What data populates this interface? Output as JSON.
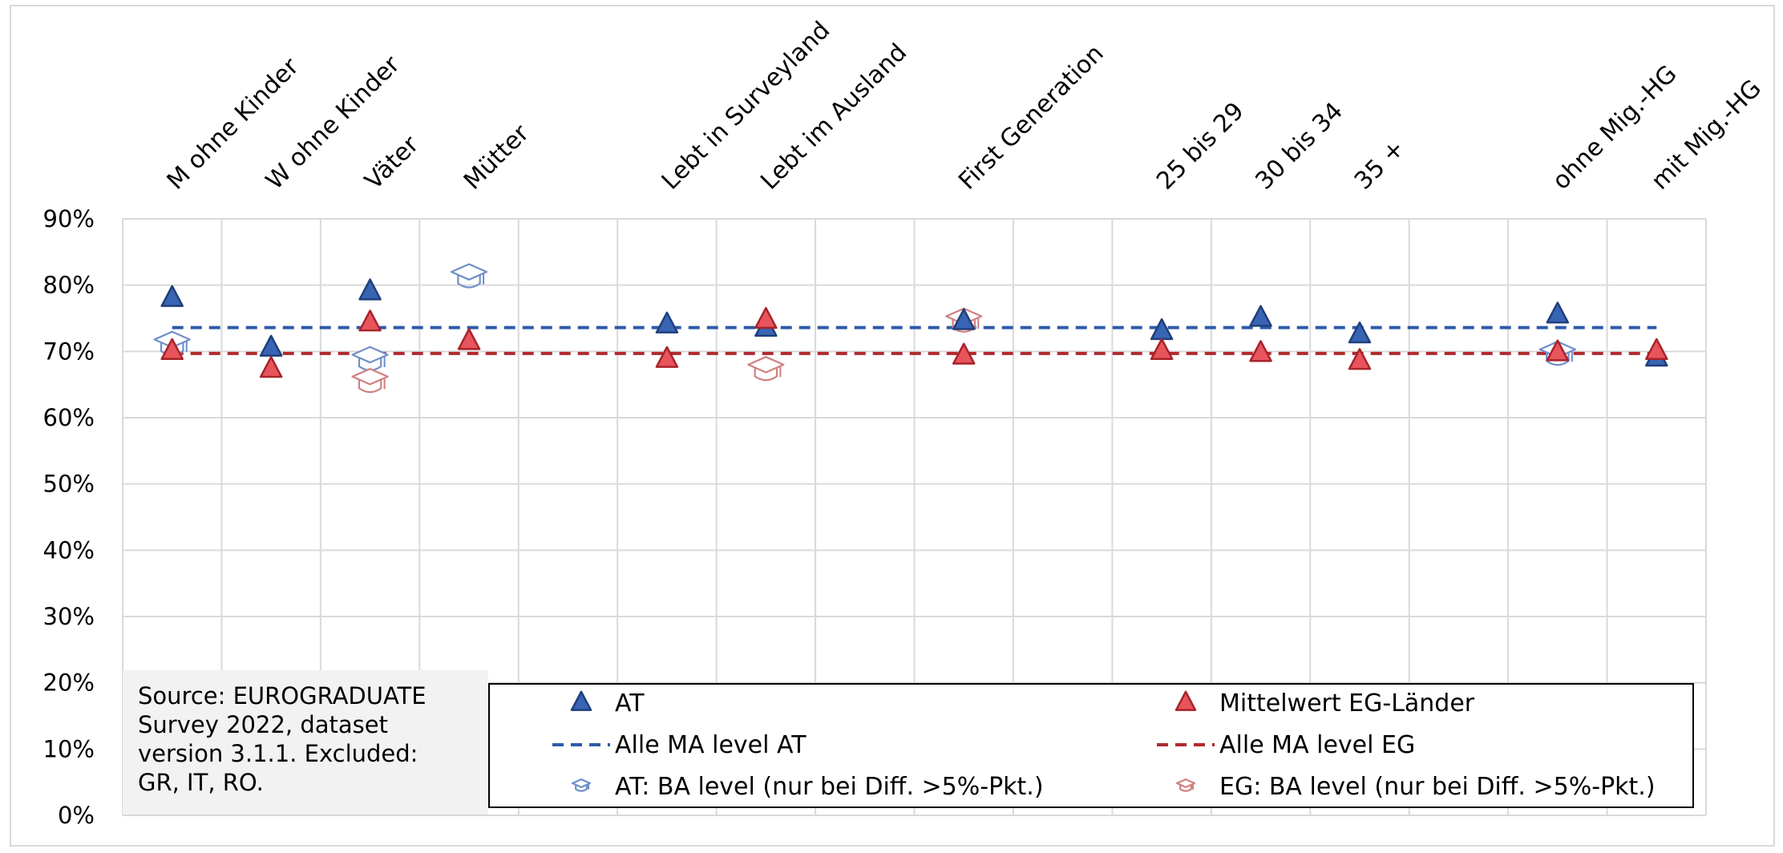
{
  "chart_data": {
    "type": "scatter",
    "categories": [
      "M ohne Kinder",
      "W ohne Kinder",
      "Väter",
      "Mütter",
      "",
      "Lebt in Surveyland",
      "Lebt im Ausland",
      "",
      "First Generation",
      "",
      "25 bis 29",
      "30 bis 34",
      "35 +",
      "",
      "ohne Mig.-HG",
      "mit Mig.-HG"
    ],
    "ylim": [
      0,
      0.9
    ],
    "yticks": [
      0,
      0.1,
      0.2,
      0.3,
      0.4,
      0.5,
      0.6,
      0.7,
      0.8,
      0.9
    ],
    "ytick_labels": [
      "0%",
      "10%",
      "20%",
      "30%",
      "40%",
      "50%",
      "60%",
      "70%",
      "80%",
      "90%"
    ],
    "grid": true,
    "legend_position": "bottom",
    "series": [
      {
        "name": "AT",
        "marker": "triangle",
        "color": "#2e5aa8",
        "values": [
          0.78,
          0.705,
          0.79,
          null,
          null,
          0.74,
          0.735,
          null,
          0.745,
          null,
          0.73,
          0.75,
          0.725,
          null,
          0.755,
          0.69
        ]
      },
      {
        "name": "Mittelwert EG-Länder",
        "marker": "triangle",
        "color": "#e0434b",
        "values": [
          0.7,
          0.673,
          0.743,
          0.715,
          null,
          0.688,
          0.747,
          null,
          0.693,
          null,
          0.7,
          0.697,
          0.685,
          null,
          0.698,
          0.7
        ]
      },
      {
        "name": "Alle MA level AT",
        "marker": "dashed-line",
        "color": "#2e5aa8",
        "value": 0.736
      },
      {
        "name": "Alle MA level EG",
        "marker": "dashed-line",
        "color": "#b02a30",
        "value": 0.697
      },
      {
        "name": "AT: BA level (nur bei Diff. >5%-Pkt.)",
        "marker": "graduation-cap-icon",
        "color": "#6f8fc9",
        "values": [
          0.718,
          null,
          0.695,
          0.82,
          null,
          null,
          null,
          null,
          null,
          null,
          null,
          null,
          null,
          null,
          0.703,
          null
        ]
      },
      {
        "name": "EG: BA level (nur bei Diff. >5%-Pkt.)",
        "marker": "graduation-cap-icon",
        "color": "#d08080",
        "values": [
          null,
          null,
          0.662,
          null,
          null,
          null,
          0.68,
          null,
          0.753,
          null,
          null,
          null,
          null,
          null,
          null,
          null
        ]
      }
    ],
    "annotation": "Source: EUROGRADUATE Survey 2022, dataset version 3.1.1. Excluded: GR, IT, RO."
  }
}
